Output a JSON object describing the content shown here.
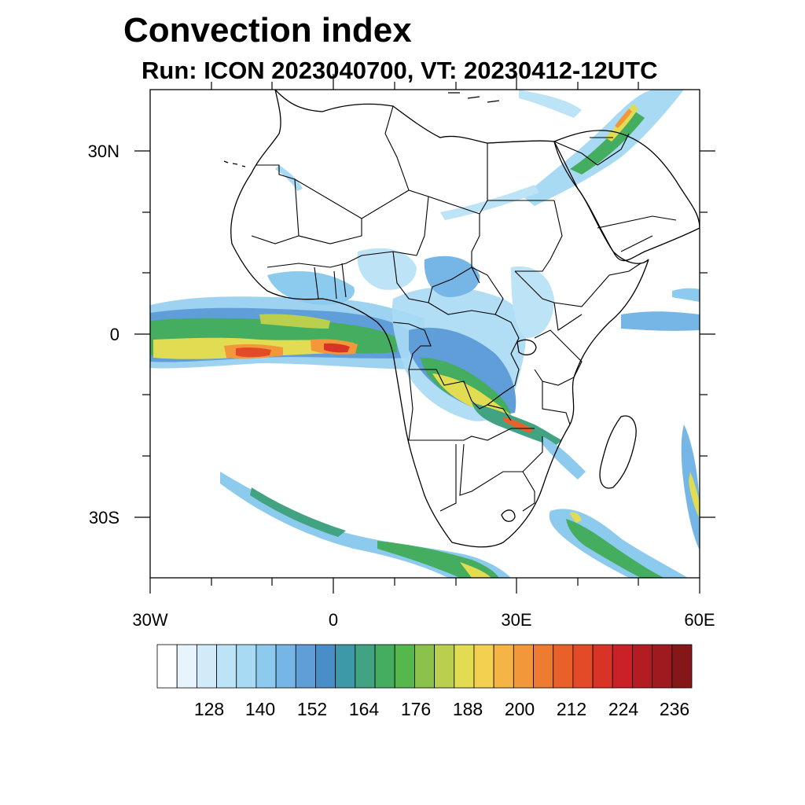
{
  "title": "Convection index",
  "subtitle": "Run: ICON 2023040700,  VT: 20230412-12UTC",
  "map": {
    "region": "Africa",
    "lon_range": [
      -30,
      60
    ],
    "lat_range": [
      -40,
      40
    ],
    "y_axis_labels": [
      {
        "lat": 30,
        "text": "30N"
      },
      {
        "lat": 0,
        "text": "0"
      },
      {
        "lat": -30,
        "text": "30S"
      }
    ],
    "x_axis_labels": [
      {
        "lon": -30,
        "text": "30W"
      },
      {
        "lon": 0,
        "text": "0"
      },
      {
        "lon": 30,
        "text": "30E"
      },
      {
        "lon": 60,
        "text": "60E"
      }
    ]
  },
  "colorbar": {
    "label_values": [
      "128",
      "140",
      "152",
      "164",
      "176",
      "188",
      "200",
      "212",
      "224",
      "236"
    ],
    "colors": [
      "#ffffff",
      "#e8f4fc",
      "#d2ebf8",
      "#bde3f6",
      "#a8daf4",
      "#8ccaee",
      "#76b6e6",
      "#5f9ed8",
      "#4a8ec8",
      "#3d98a8",
      "#42a383",
      "#44ad5f",
      "#56b84c",
      "#8cc24c",
      "#b9cf4d",
      "#e1dc52",
      "#f4d050",
      "#f5b444",
      "#f2983a",
      "#ef7b31",
      "#ea602b",
      "#e24a28",
      "#d93327",
      "#c92127",
      "#b41c24",
      "#9e1a1f",
      "#861719"
    ]
  }
}
